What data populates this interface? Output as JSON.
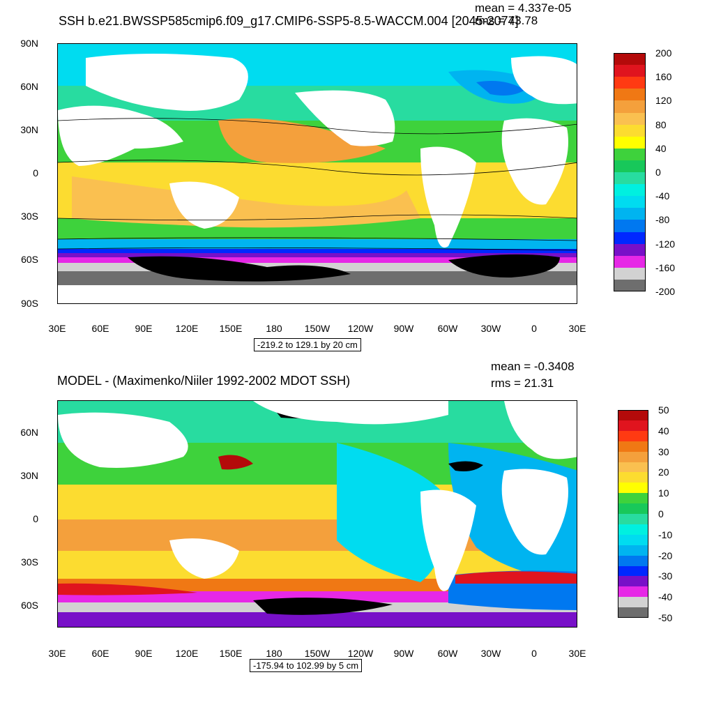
{
  "top": {
    "title": "SSH b.e21.BWSSP585cmip6.f09_g17.CMIP6-SSP5-8.5-WACCM.004 [2045-2074]",
    "mean": "mean = 4.337e-05",
    "rms": "rms = 73.78",
    "lat_labels": [
      "90N",
      "60N",
      "30N",
      "0",
      "30S",
      "60S",
      "90S"
    ],
    "lon_labels": [
      "30E",
      "60E",
      "90E",
      "120E",
      "150E",
      "180",
      "150W",
      "120W",
      "90W",
      "60W",
      "30W",
      "0",
      "30E"
    ],
    "range_text": "-219.2 to 129.1 by 20 cm",
    "colorbar_labels": [
      "200",
      "160",
      "120",
      "80",
      "40",
      "0",
      "-40",
      "-80",
      "-120",
      "-160",
      "-200"
    ],
    "colorbar_colors": [
      "#b40a0a",
      "#e0141e",
      "#ff3a12",
      "#f07814",
      "#f4a03c",
      "#fac050",
      "#fcdc30",
      "#ffff00",
      "#3ed23c",
      "#18c85a",
      "#28dca0",
      "#00f0e0",
      "#00dcf0",
      "#00b4f0",
      "#0078f0",
      "#0028ff",
      "#7810c8",
      "#e628e6",
      "#d2d2d2",
      "#6e6e6e"
    ]
  },
  "bottom": {
    "title": "MODEL - (Maximenko/Niiler 1992-2002 MDOT SSH)",
    "mean": "mean = -0.3408",
    "rms": "rms = 21.31",
    "lat_labels": [
      "60N",
      "30N",
      "0",
      "30S",
      "60S"
    ],
    "lon_labels": [
      "30E",
      "60E",
      "90E",
      "120E",
      "150E",
      "180",
      "150W",
      "120W",
      "90W",
      "60W",
      "30W",
      "0",
      "30E"
    ],
    "range_text": "-175.94 to 102.99 by 5 cm",
    "colorbar_labels": [
      "50",
      "40",
      "30",
      "20",
      "10",
      "0",
      "-10",
      "-20",
      "-30",
      "-40",
      "-50"
    ],
    "colorbar_colors": [
      "#b40a0a",
      "#e0141e",
      "#ff3a12",
      "#f07814",
      "#f4a03c",
      "#fac050",
      "#fcdc30",
      "#ffff00",
      "#3ed23c",
      "#18c85a",
      "#28dca0",
      "#00f0e0",
      "#00dcf0",
      "#00b4f0",
      "#0078f0",
      "#0028ff",
      "#7810c8",
      "#e628e6",
      "#d2d2d2",
      "#6e6e6e"
    ]
  }
}
